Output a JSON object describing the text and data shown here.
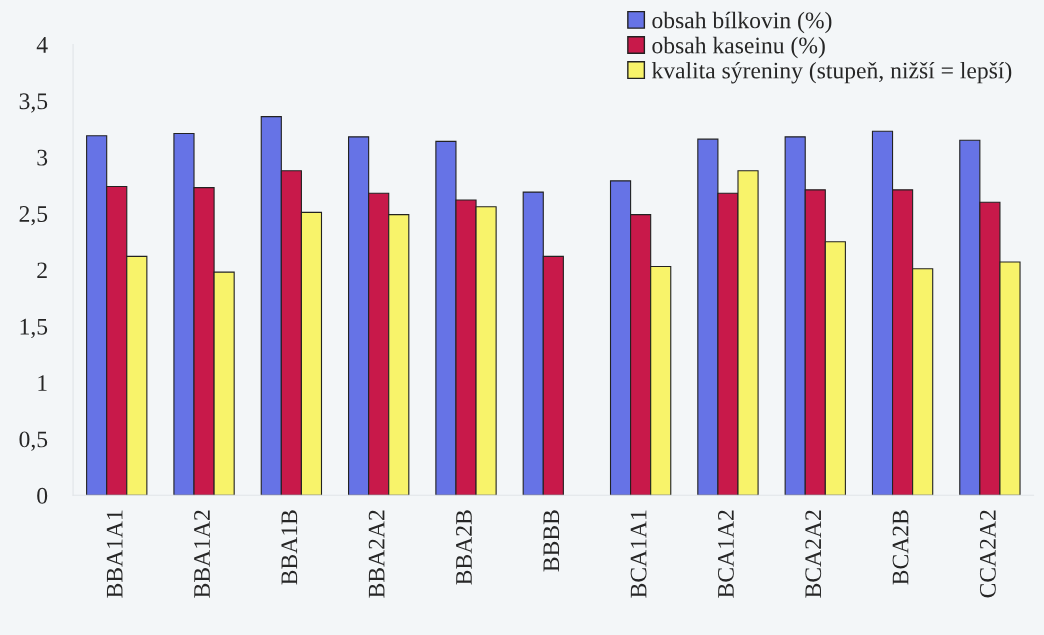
{
  "chart_data": {
    "type": "bar",
    "categories": [
      "BBA1A1",
      "BBA1A2",
      "BBA1B",
      "BBA2A2",
      "BBA2B",
      "BBBB",
      "BCA1A1",
      "BCA1A2",
      "BCA2A2",
      "BCA2B",
      "CCA2A2"
    ],
    "series": [
      {
        "name": "obsah bílkovin (%)",
        "color": "#6673e6",
        "values": [
          3.19,
          3.21,
          3.36,
          3.18,
          3.14,
          2.69,
          2.79,
          3.16,
          3.18,
          3.23,
          3.15
        ]
      },
      {
        "name": "obsah kaseinu (%)",
        "color": "#c8194a",
        "values": [
          2.74,
          2.73,
          2.88,
          2.68,
          2.62,
          2.12,
          2.49,
          2.68,
          2.71,
          2.71,
          2.6
        ]
      },
      {
        "name": "kvalita sýreniny (stupeň, nižší = lepší)",
        "color": "#f8f36a",
        "values": [
          2.12,
          1.98,
          2.51,
          2.49,
          2.56,
          null,
          2.03,
          2.88,
          2.25,
          2.01,
          2.07
        ]
      }
    ],
    "ylim": [
      0,
      4
    ],
    "yticks": [
      0,
      {
        "value": 0.5,
        "label": "0,5"
      },
      1,
      {
        "value": 1.5,
        "label": "1,5"
      },
      2,
      {
        "value": 2.5,
        "label": "2,5"
      },
      3,
      {
        "value": 3.5,
        "label": "3,5"
      },
      4
    ],
    "grid": false,
    "legend": "top right"
  }
}
